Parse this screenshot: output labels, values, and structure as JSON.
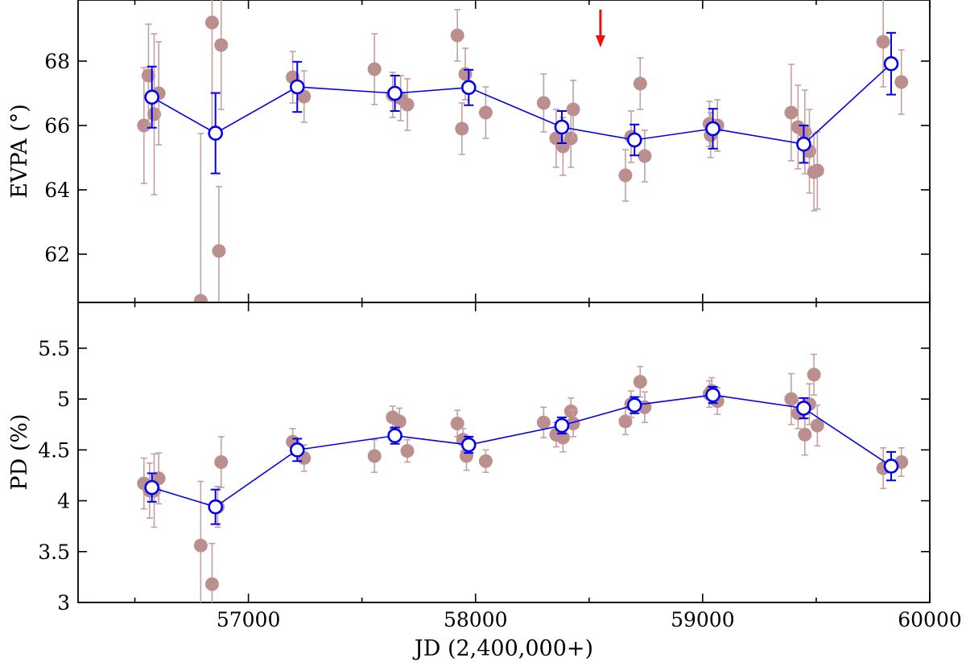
{
  "colors": {
    "individual": "#bc8f8f",
    "individual_err": "#c4a0a0",
    "binned": "#0000ee",
    "arrow": "#ee1111",
    "axis": "#000000"
  },
  "chart_data": [
    {
      "type": "scatter",
      "panel": "top",
      "xlabel": "",
      "ylabel": "EVPA (°)",
      "xlim": [
        56250,
        60000
      ],
      "ylim": [
        60.5,
        69.9
      ],
      "xticks": [
        56500,
        57000,
        57500,
        58000,
        58500,
        59000,
        59500,
        60000
      ],
      "yticks": [
        62,
        64,
        66,
        68
      ],
      "ytick_labels": [
        "62",
        "64",
        "66",
        "68"
      ],
      "annotation": {
        "type": "arrow",
        "x": 58550,
        "direction": "down",
        "color": "red"
      },
      "series": [
        {
          "name": "individual",
          "points": [
            {
              "x": 56540,
              "y": 66.0,
              "err": 1.8
            },
            {
              "x": 56560,
              "y": 67.55,
              "err": 1.6
            },
            {
              "x": 56585,
              "y": 66.35,
              "err": 2.5
            },
            {
              "x": 56605,
              "y": 67.0,
              "err": 1.6
            },
            {
              "x": 56790,
              "y": 60.55,
              "err": 5.2
            },
            {
              "x": 56840,
              "y": 69.2,
              "err": 3.5
            },
            {
              "x": 56870,
              "y": 62.1,
              "err": 2.0
            },
            {
              "x": 56880,
              "y": 68.5,
              "err": 2.0
            },
            {
              "x": 57195,
              "y": 67.5,
              "err": 0.8
            },
            {
              "x": 57245,
              "y": 66.9,
              "err": 0.8
            },
            {
              "x": 57555,
              "y": 67.75,
              "err": 1.1
            },
            {
              "x": 57635,
              "y": 66.95,
              "err": 0.7
            },
            {
              "x": 57670,
              "y": 66.85,
              "err": 0.7
            },
            {
              "x": 57700,
              "y": 66.65,
              "err": 0.8
            },
            {
              "x": 57920,
              "y": 68.8,
              "err": 0.8
            },
            {
              "x": 57940,
              "y": 65.9,
              "err": 0.8
            },
            {
              "x": 57955,
              "y": 67.6,
              "err": 0.8
            },
            {
              "x": 58045,
              "y": 66.4,
              "err": 0.8
            },
            {
              "x": 58300,
              "y": 66.7,
              "err": 0.9
            },
            {
              "x": 58355,
              "y": 65.6,
              "err": 0.9
            },
            {
              "x": 58385,
              "y": 65.35,
              "err": 0.9
            },
            {
              "x": 58420,
              "y": 65.6,
              "err": 0.9
            },
            {
              "x": 58430,
              "y": 66.5,
              "err": 0.9
            },
            {
              "x": 58660,
              "y": 64.45,
              "err": 0.8
            },
            {
              "x": 58685,
              "y": 65.65,
              "err": 0.8
            },
            {
              "x": 58725,
              "y": 67.3,
              "err": 0.8
            },
            {
              "x": 58745,
              "y": 65.05,
              "err": 0.8
            },
            {
              "x": 59030,
              "y": 66.05,
              "err": 0.7
            },
            {
              "x": 59035,
              "y": 65.7,
              "err": 0.7
            },
            {
              "x": 59065,
              "y": 66.0,
              "err": 0.8
            },
            {
              "x": 59390,
              "y": 66.4,
              "err": 1.5
            },
            {
              "x": 59420,
              "y": 65.95,
              "err": 1.3
            },
            {
              "x": 59450,
              "y": 65.8,
              "err": 1.3
            },
            {
              "x": 59470,
              "y": 65.2,
              "err": 1.3
            },
            {
              "x": 59490,
              "y": 64.55,
              "err": 1.2
            },
            {
              "x": 59505,
              "y": 64.6,
              "err": 1.2
            },
            {
              "x": 59795,
              "y": 68.6,
              "err": 1.4
            },
            {
              "x": 59875,
              "y": 67.35,
              "err": 1.0
            }
          ]
        },
        {
          "name": "binned",
          "points": [
            {
              "x": 56575,
              "y": 66.88,
              "err": 0.95
            },
            {
              "x": 56855,
              "y": 65.76,
              "err": 1.25
            },
            {
              "x": 57215,
              "y": 67.2,
              "err": 0.78
            },
            {
              "x": 57645,
              "y": 67.0,
              "err": 0.55
            },
            {
              "x": 57970,
              "y": 67.18,
              "err": 0.55
            },
            {
              "x": 58380,
              "y": 65.95,
              "err": 0.5
            },
            {
              "x": 58700,
              "y": 65.55,
              "err": 0.48
            },
            {
              "x": 59045,
              "y": 65.9,
              "err": 0.62
            },
            {
              "x": 59445,
              "y": 65.42,
              "err": 0.58
            },
            {
              "x": 59830,
              "y": 67.92,
              "err": 0.96
            }
          ]
        }
      ]
    },
    {
      "type": "scatter",
      "panel": "bottom",
      "xlabel": "JD (2,400,000+)",
      "ylabel": "PD (%)",
      "xlim": [
        56250,
        60000
      ],
      "ylim": [
        3.0,
        5.95
      ],
      "xticks": [
        56500,
        57000,
        57500,
        58000,
        58500,
        59000,
        59500,
        60000
      ],
      "xtick_labels": [
        "57000",
        "58000",
        "59000",
        "60000"
      ],
      "yticks": [
        3,
        3.5,
        4,
        4.5,
        5,
        5.5
      ],
      "ytick_labels": [
        "3",
        "3.5",
        "4",
        "4.5",
        "5",
        "5.5"
      ],
      "series": [
        {
          "name": "individual",
          "points": [
            {
              "x": 56540,
              "y": 4.17,
              "err": 0.25
            },
            {
              "x": 56565,
              "y": 4.1,
              "err": 0.27
            },
            {
              "x": 56585,
              "y": 4.1,
              "err": 0.36
            },
            {
              "x": 56605,
              "y": 4.22,
              "err": 0.25
            },
            {
              "x": 56790,
              "y": 3.56,
              "err": 0.63
            },
            {
              "x": 56840,
              "y": 3.18,
              "err": 0.4
            },
            {
              "x": 56865,
              "y": 3.94,
              "err": 0.2
            },
            {
              "x": 56880,
              "y": 4.38,
              "err": 0.25
            },
            {
              "x": 57195,
              "y": 4.58,
              "err": 0.13
            },
            {
              "x": 57245,
              "y": 4.42,
              "err": 0.13
            },
            {
              "x": 57555,
              "y": 4.44,
              "err": 0.16
            },
            {
              "x": 57635,
              "y": 4.82,
              "err": 0.11
            },
            {
              "x": 57665,
              "y": 4.78,
              "err": 0.13
            },
            {
              "x": 57700,
              "y": 4.49,
              "err": 0.11
            },
            {
              "x": 57920,
              "y": 4.76,
              "err": 0.13
            },
            {
              "x": 57945,
              "y": 4.6,
              "err": 0.11
            },
            {
              "x": 57960,
              "y": 4.44,
              "err": 0.14
            },
            {
              "x": 58045,
              "y": 4.39,
              "err": 0.11
            },
            {
              "x": 58300,
              "y": 4.77,
              "err": 0.15
            },
            {
              "x": 58355,
              "y": 4.65,
              "err": 0.12
            },
            {
              "x": 58385,
              "y": 4.62,
              "err": 0.14
            },
            {
              "x": 58420,
              "y": 4.88,
              "err": 0.13
            },
            {
              "x": 58430,
              "y": 4.76,
              "err": 0.13
            },
            {
              "x": 58660,
              "y": 4.78,
              "err": 0.13
            },
            {
              "x": 58685,
              "y": 4.95,
              "err": 0.13
            },
            {
              "x": 58725,
              "y": 5.17,
              "err": 0.15
            },
            {
              "x": 58745,
              "y": 4.92,
              "err": 0.15
            },
            {
              "x": 59030,
              "y": 5.05,
              "err": 0.13
            },
            {
              "x": 59040,
              "y": 5.08,
              "err": 0.13
            },
            {
              "x": 59065,
              "y": 4.98,
              "err": 0.13
            },
            {
              "x": 59390,
              "y": 5.0,
              "err": 0.25
            },
            {
              "x": 59420,
              "y": 4.86,
              "err": 0.15
            },
            {
              "x": 59450,
              "y": 4.65,
              "err": 0.2
            },
            {
              "x": 59470,
              "y": 4.95,
              "err": 0.2
            },
            {
              "x": 59490,
              "y": 5.24,
              "err": 0.2
            },
            {
              "x": 59505,
              "y": 4.74,
              "err": 0.2
            },
            {
              "x": 59795,
              "y": 4.32,
              "err": 0.2
            },
            {
              "x": 59875,
              "y": 4.38,
              "err": 0.14
            }
          ]
        },
        {
          "name": "binned",
          "points": [
            {
              "x": 56575,
              "y": 4.13,
              "err": 0.14
            },
            {
              "x": 56855,
              "y": 3.94,
              "err": 0.17
            },
            {
              "x": 57215,
              "y": 4.5,
              "err": 0.11
            },
            {
              "x": 57645,
              "y": 4.64,
              "err": 0.08
            },
            {
              "x": 57970,
              "y": 4.55,
              "err": 0.08
            },
            {
              "x": 58380,
              "y": 4.74,
              "err": 0.08
            },
            {
              "x": 58700,
              "y": 4.94,
              "err": 0.08
            },
            {
              "x": 59045,
              "y": 5.04,
              "err": 0.08
            },
            {
              "x": 59445,
              "y": 4.91,
              "err": 0.1
            },
            {
              "x": 59830,
              "y": 4.34,
              "err": 0.14
            }
          ]
        }
      ]
    }
  ]
}
